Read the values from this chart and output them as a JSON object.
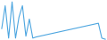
{
  "x": [
    0,
    1,
    2,
    3,
    4,
    5,
    6,
    7,
    8,
    9,
    10,
    11,
    12,
    13,
    14,
    15,
    16,
    17,
    18,
    19,
    20,
    21,
    22,
    23,
    24,
    25,
    26,
    27,
    28,
    29,
    30
  ],
  "y": [
    30,
    90,
    5,
    100,
    5,
    60,
    90,
    10,
    55,
    5,
    8,
    10,
    12,
    14,
    16,
    18,
    20,
    22,
    24,
    26,
    28,
    30,
    32,
    34,
    36,
    38,
    40,
    42,
    44,
    5,
    2
  ],
  "line_color": "#4da6e0",
  "bg_color": "#ffffff",
  "linewidth": 0.8,
  "ylim_min": 0,
  "ylim_max": 105
}
